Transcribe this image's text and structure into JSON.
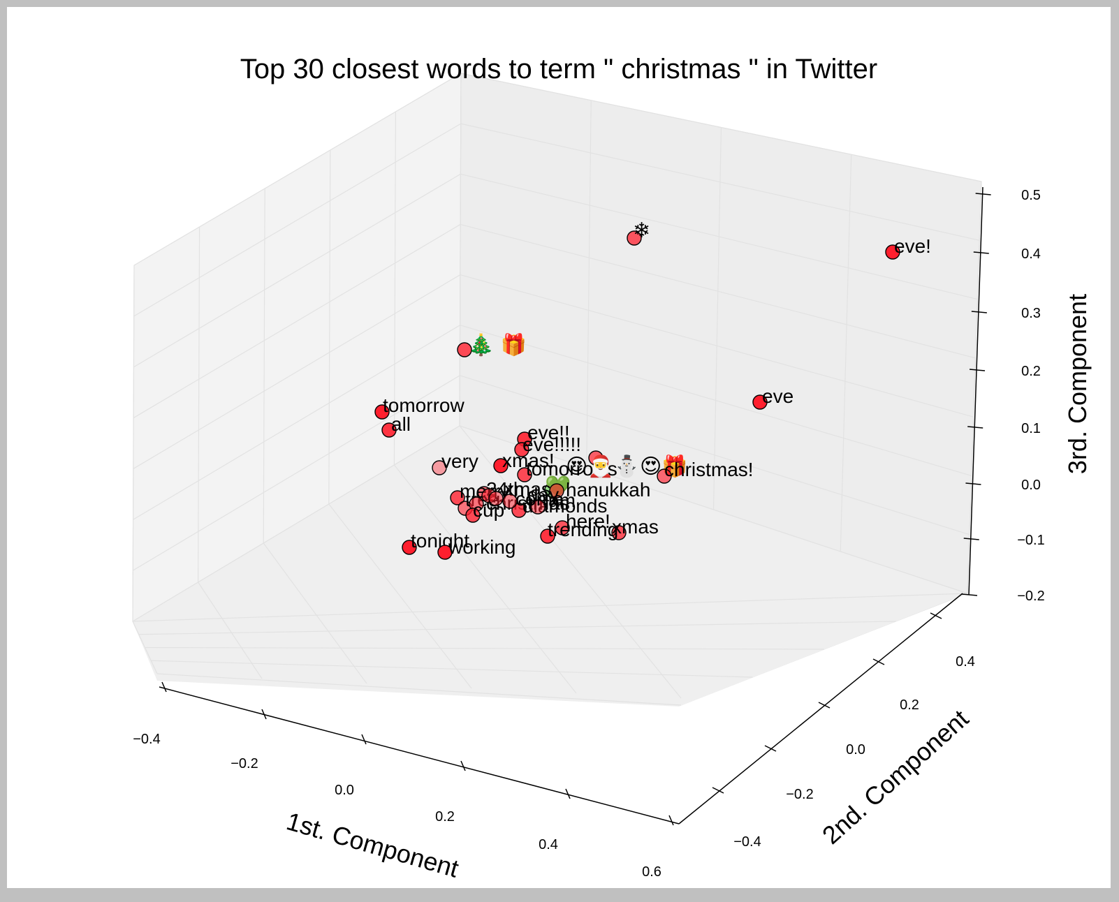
{
  "colors": {
    "point_fill": "#ff1f2e",
    "point_stroke": "#000000",
    "pane_fill": "#f2f2f2",
    "grid": "#e2e2e2",
    "heart": "#5ad24a"
  },
  "chart_data": {
    "type": "scatter",
    "title": "Top 30 closest words to term \" christmas \" in Twitter",
    "xlabel": "1st. Component",
    "ylabel": "2nd. Component",
    "zlabel": "3rd. Component",
    "x_ticks": [
      "−0.4",
      "−0.2",
      "0.0",
      "0.2",
      "0.4",
      "0.6"
    ],
    "y_ticks": [
      "−0.4",
      "−0.2",
      "0.0",
      "0.2",
      "0.4"
    ],
    "z_ticks": [
      "−0.2",
      "−0.1",
      "0.0",
      "0.1",
      "0.2",
      "0.3",
      "0.4",
      "0.5"
    ],
    "xlim": [
      -0.4,
      0.6
    ],
    "ylim": [
      -0.4,
      0.4
    ],
    "zlim": [
      -0.2,
      0.5
    ],
    "grid": true,
    "points": [
      {
        "label": "❄",
        "emoji": true
      },
      {
        "label": "eve!"
      },
      {
        "label": "🎄 🎁",
        "emoji": true
      },
      {
        "label": "eve"
      },
      {
        "label": "tomorrow"
      },
      {
        "label": "all"
      },
      {
        "label": "eve!!"
      },
      {
        "label": "eve!!!!!"
      },
      {
        "label": "very"
      },
      {
        "label": "xmas!"
      },
      {
        "label": "tomorrows"
      },
      {
        "label": "😍🎅⛄😍🎁",
        "emoji": true
      },
      {
        "label": "christmas!"
      },
      {
        "label": "💚",
        "emoji": true
      },
      {
        "label": "hanukkah"
      },
      {
        "label": "24th"
      },
      {
        "label": "merry"
      },
      {
        "label": "tree"
      },
      {
        "label": "christmas"
      },
      {
        "label": "cup"
      },
      {
        "label": "diamonds"
      },
      {
        "label": "here!"
      },
      {
        "label": "xmas"
      },
      {
        "label": "trending"
      },
      {
        "label": "tonight"
      },
      {
        "label": "working"
      },
      {
        "label": "am"
      },
      {
        "label": "xmas"
      },
      {
        "label": "come"
      },
      {
        "label": "day"
      }
    ]
  }
}
